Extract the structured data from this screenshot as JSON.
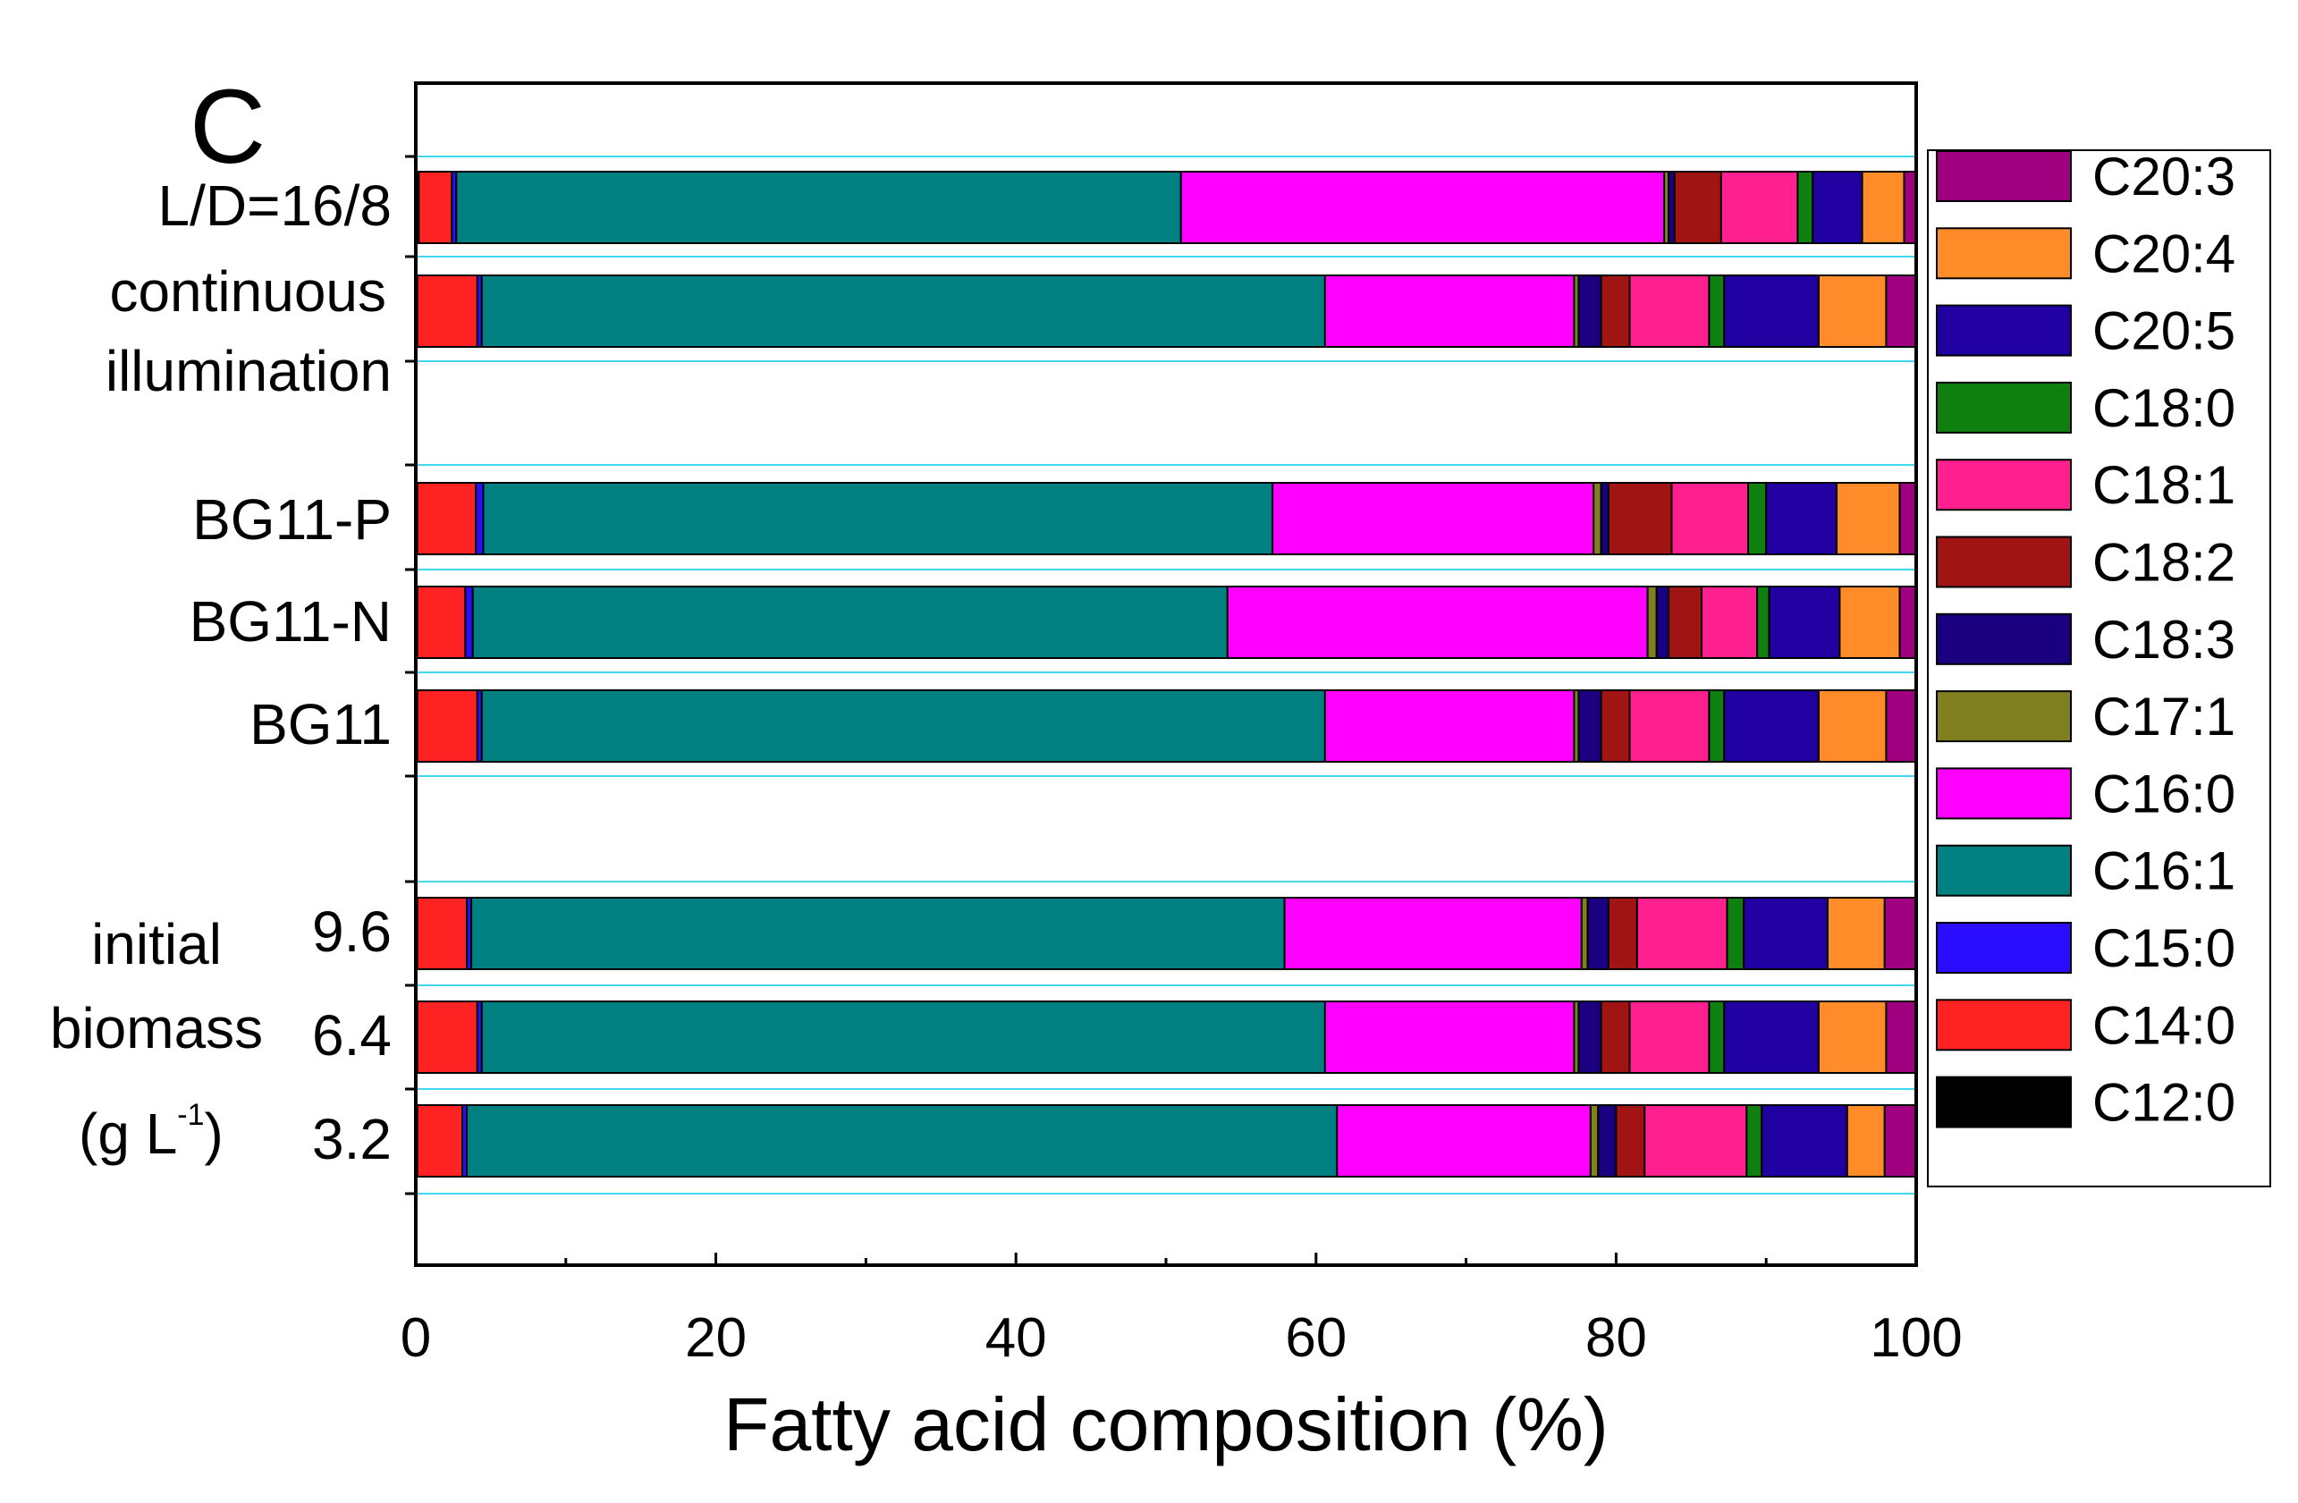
{
  "chart_data": {
    "type": "bar",
    "orientation": "horizontal",
    "stacked": true,
    "panel_label": "C",
    "xlabel": "Fatty acid composition (%)",
    "xlim": [
      0,
      100
    ],
    "xticks": [
      "0",
      "20",
      "40",
      "60",
      "80",
      "100"
    ],
    "legend_position": "right",
    "series": [
      {
        "name": "C12:0",
        "color": "#000000"
      },
      {
        "name": "C14:0",
        "color": "#ff2222"
      },
      {
        "name": "C15:0",
        "color": "#2a0dff"
      },
      {
        "name": "C16:1",
        "color": "#008080"
      },
      {
        "name": "C16:0",
        "color": "#ff00ff"
      },
      {
        "name": "C17:1",
        "color": "#808020"
      },
      {
        "name": "C18:3",
        "color": "#1a0080"
      },
      {
        "name": "C18:2",
        "color": "#a01414"
      },
      {
        "name": "C18:1",
        "color": "#ff1f8f"
      },
      {
        "name": "C18:0",
        "color": "#0f7f0f"
      },
      {
        "name": "C20:5",
        "color": "#2000a0"
      },
      {
        "name": "C20:4",
        "color": "#ff8c28"
      },
      {
        "name": "C20:3",
        "color": "#a0007f"
      }
    ],
    "legend_order": [
      "C20:3",
      "C20:4",
      "C20:5",
      "C18:0",
      "C18:1",
      "C18:2",
      "C18:3",
      "C17:1",
      "C16:0",
      "C16:1",
      "C15:0",
      "C14:0",
      "C12:0"
    ],
    "bars": [
      {
        "label": "L/D=16/8",
        "values": [
          0.2,
          2.2,
          0.3,
          48.3,
          32.2,
          0.3,
          0.4,
          3.1,
          5.1,
          1.0,
          3.3,
          2.8,
          0.8
        ]
      },
      {
        "label": "continuous illumination",
        "values": [
          0.1,
          4.0,
          0.3,
          56.2,
          16.6,
          0.3,
          1.5,
          1.9,
          5.3,
          1.0,
          6.3,
          4.5,
          2.0
        ]
      },
      {
        "label": "BG11-P",
        "values": [
          0.1,
          3.9,
          0.5,
          52.6,
          21.4,
          0.5,
          0.5,
          4.2,
          5.1,
          1.2,
          4.7,
          4.2,
          1.1
        ]
      },
      {
        "label": "BG11-N",
        "values": [
          0.1,
          3.2,
          0.5,
          50.3,
          28.0,
          0.6,
          0.8,
          2.2,
          3.7,
          0.8,
          4.7,
          4.0,
          1.1
        ]
      },
      {
        "label": "BG11",
        "values": [
          0.1,
          4.0,
          0.3,
          56.2,
          16.6,
          0.3,
          1.5,
          1.9,
          5.3,
          1.0,
          6.3,
          4.5,
          2.0
        ]
      },
      {
        "label": "9.6",
        "values": [
          0.1,
          3.3,
          0.3,
          54.2,
          19.8,
          0.4,
          1.4,
          1.9,
          6.0,
          1.1,
          5.6,
          3.8,
          2.1
        ]
      },
      {
        "label": "6.4",
        "values": [
          0.1,
          4.0,
          0.3,
          56.2,
          16.6,
          0.3,
          1.5,
          1.9,
          5.3,
          1.0,
          6.3,
          4.5,
          2.0
        ]
      },
      {
        "label": "3.2",
        "values": [
          0.1,
          3.0,
          0.3,
          58.0,
          16.9,
          0.5,
          1.2,
          1.9,
          6.8,
          1.0,
          5.7,
          2.5,
          2.1
        ]
      }
    ],
    "category_labels": {
      "ld": "L/D=16/8",
      "cont1": "continuous",
      "cont2": "illumination",
      "bg11p": "BG11-P",
      "bg11n": "BG11-N",
      "bg11": "BG11",
      "b96": "9.6",
      "b64": "6.4",
      "b32": "3.2",
      "group1": "initial",
      "group2": "biomass",
      "group3_pre": "(g L",
      "group3_sup": "-1",
      "group3_post": ")"
    }
  }
}
